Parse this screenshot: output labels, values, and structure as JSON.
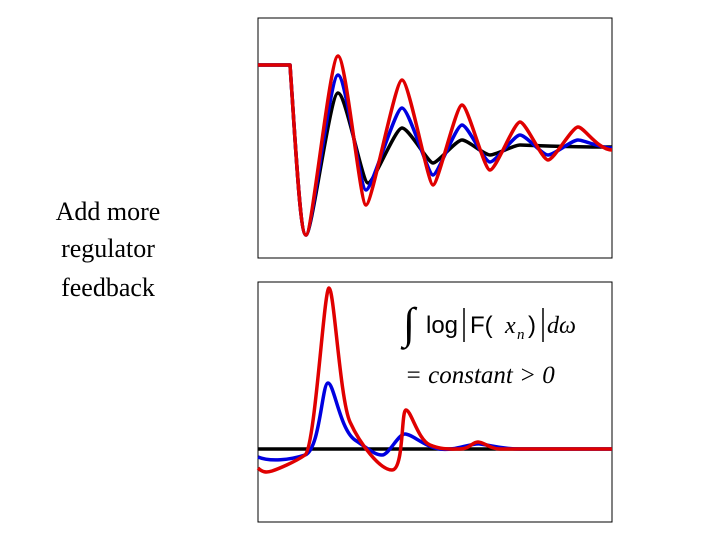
{
  "label": {
    "lines": [
      "Add more",
      "regulator",
      "feedback"
    ]
  },
  "formula": {
    "integral": "∫",
    "log": "log",
    "f_open": "F(",
    "x": "x",
    "sub": "n",
    "f_close": ")",
    "d_omega": "dω",
    "line2": "= constant > 0"
  }
}
